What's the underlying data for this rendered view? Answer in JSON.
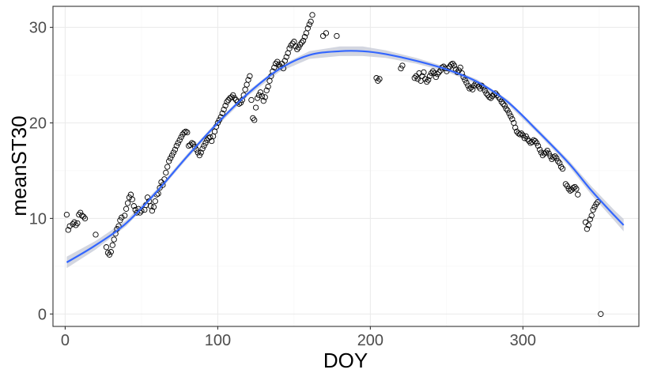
{
  "chart_data": {
    "type": "scatter",
    "title": "",
    "xlabel": "DOY",
    "ylabel": "meanST30",
    "xlim": [
      -8,
      376
    ],
    "ylim": [
      -1.3,
      32.2
    ],
    "xticks": [
      0,
      100,
      200,
      300
    ],
    "yticks": [
      0,
      10,
      20,
      30
    ],
    "x_tick_labels": [
      "0",
      "100",
      "200",
      "300"
    ],
    "y_tick_labels": [
      "0",
      "10",
      "20",
      "30"
    ],
    "grid": true,
    "colors": {
      "smooth": "#3366ff",
      "band": "#c4c8d6",
      "point": "#000000",
      "panel_border": "#333333"
    },
    "points": [
      [
        1,
        10.4
      ],
      [
        2,
        8.8
      ],
      [
        3,
        9.2
      ],
      [
        5,
        9.4
      ],
      [
        6,
        9.6
      ],
      [
        7,
        9.3
      ],
      [
        8,
        9.5
      ],
      [
        9,
        10.4
      ],
      [
        10,
        10.6
      ],
      [
        11,
        10.3
      ],
      [
        12,
        10.2
      ],
      [
        13,
        10.0
      ],
      [
        20,
        8.3
      ],
      [
        27,
        7.0
      ],
      [
        28,
        6.4
      ],
      [
        29,
        6.2
      ],
      [
        30,
        6.5
      ],
      [
        31,
        7.2
      ],
      [
        32,
        7.8
      ],
      [
        33,
        8.4
      ],
      [
        34,
        8.9
      ],
      [
        35,
        9.2
      ],
      [
        36,
        9.8
      ],
      [
        37,
        10.1
      ],
      [
        39,
        10.3
      ],
      [
        40,
        11.0
      ],
      [
        41,
        11.6
      ],
      [
        42,
        12.2
      ],
      [
        43,
        12.5
      ],
      [
        44,
        12.0
      ],
      [
        45,
        11.3
      ],
      [
        46,
        10.9
      ],
      [
        47,
        10.6
      ],
      [
        48,
        11.0
      ],
      [
        49,
        10.6
      ],
      [
        50,
        10.8
      ],
      [
        52,
        10.9
      ],
      [
        53,
        11.4
      ],
      [
        54,
        12.2
      ],
      [
        55,
        11.8
      ],
      [
        56,
        11.3
      ],
      [
        57,
        10.8
      ],
      [
        58,
        11.2
      ],
      [
        59,
        11.8
      ],
      [
        60,
        12.5
      ],
      [
        61,
        12.6
      ],
      [
        62,
        13.2
      ],
      [
        63,
        13.8
      ],
      [
        64,
        13.5
      ],
      [
        65,
        14.1
      ],
      [
        66,
        14.8
      ],
      [
        67,
        15.4
      ],
      [
        68,
        16.0
      ],
      [
        69,
        16.3
      ],
      [
        70,
        16.6
      ],
      [
        71,
        16.9
      ],
      [
        72,
        17.2
      ],
      [
        73,
        17.6
      ],
      [
        74,
        17.9
      ],
      [
        75,
        18.2
      ],
      [
        76,
        18.5
      ],
      [
        77,
        18.8
      ],
      [
        78,
        19.0
      ],
      [
        79,
        19.1
      ],
      [
        80,
        19.0
      ],
      [
        81,
        17.6
      ],
      [
        82,
        17.7
      ],
      [
        83,
        17.9
      ],
      [
        84,
        17.8
      ],
      [
        85,
        17.5
      ],
      [
        86,
        17.2
      ],
      [
        87,
        16.9
      ],
      [
        88,
        16.6
      ],
      [
        89,
        16.9
      ],
      [
        90,
        17.3
      ],
      [
        91,
        17.6
      ],
      [
        92,
        17.9
      ],
      [
        93,
        18.2
      ],
      [
        94,
        18.4
      ],
      [
        95,
        18.5
      ],
      [
        96,
        18.1
      ],
      [
        97,
        18.6
      ],
      [
        98,
        19.1
      ],
      [
        99,
        19.6
      ],
      [
        100,
        20.0
      ],
      [
        101,
        20.3
      ],
      [
        102,
        20.6
      ],
      [
        103,
        21.0
      ],
      [
        104,
        21.4
      ],
      [
        105,
        21.8
      ],
      [
        106,
        22.2
      ],
      [
        107,
        22.4
      ],
      [
        108,
        22.6
      ],
      [
        109,
        22.7
      ],
      [
        110,
        22.9
      ],
      [
        111,
        22.6
      ],
      [
        112,
        22.4
      ],
      [
        113,
        22.2
      ],
      [
        114,
        22.0
      ],
      [
        115,
        22.1
      ],
      [
        116,
        22.4
      ],
      [
        117,
        22.9
      ],
      [
        118,
        23.5
      ],
      [
        119,
        24.0
      ],
      [
        120,
        24.5
      ],
      [
        121,
        24.9
      ],
      [
        122,
        22.4
      ],
      [
        123,
        20.5
      ],
      [
        124,
        20.3
      ],
      [
        125,
        21.6
      ],
      [
        126,
        22.6
      ],
      [
        127,
        22.9
      ],
      [
        128,
        23.2
      ],
      [
        129,
        22.8
      ],
      [
        130,
        22.3
      ],
      [
        131,
        22.7
      ],
      [
        132,
        23.4
      ],
      [
        133,
        23.8
      ],
      [
        134,
        24.4
      ],
      [
        135,
        24.9
      ],
      [
        136,
        25.4
      ],
      [
        137,
        25.8
      ],
      [
        138,
        26.2
      ],
      [
        139,
        26.4
      ],
      [
        140,
        26.1
      ],
      [
        141,
        25.9
      ],
      [
        142,
        26.2
      ],
      [
        143,
        25.7
      ],
      [
        144,
        26.5
      ],
      [
        145,
        26.9
      ],
      [
        146,
        27.3
      ],
      [
        147,
        27.8
      ],
      [
        148,
        28.1
      ],
      [
        149,
        28.3
      ],
      [
        150,
        28.5
      ],
      [
        151,
        28.0
      ],
      [
        152,
        27.7
      ],
      [
        153,
        27.9
      ],
      [
        154,
        28.2
      ],
      [
        155,
        28.4
      ],
      [
        156,
        28.6
      ],
      [
        157,
        29.0
      ],
      [
        158,
        29.4
      ],
      [
        159,
        29.9
      ],
      [
        160,
        30.3
      ],
      [
        161,
        30.6
      ],
      [
        162,
        31.3
      ],
      [
        169,
        29.1
      ],
      [
        171,
        29.4
      ],
      [
        178,
        29.1
      ],
      [
        204,
        24.7
      ],
      [
        205,
        24.4
      ],
      [
        206,
        24.6
      ],
      [
        220,
        25.7
      ],
      [
        221,
        26.0
      ],
      [
        229,
        24.7
      ],
      [
        230,
        24.9
      ],
      [
        231,
        24.6
      ],
      [
        232,
        25.2
      ],
      [
        233,
        24.4
      ],
      [
        234,
        24.9
      ],
      [
        235,
        25.3
      ],
      [
        236,
        24.6
      ],
      [
        237,
        24.3
      ],
      [
        238,
        24.5
      ],
      [
        239,
        24.9
      ],
      [
        240,
        25.2
      ],
      [
        241,
        25.4
      ],
      [
        242,
        25.2
      ],
      [
        243,
        24.8
      ],
      [
        244,
        25.1
      ],
      [
        245,
        25.3
      ],
      [
        246,
        25.5
      ],
      [
        247,
        25.8
      ],
      [
        248,
        25.9
      ],
      [
        249,
        25.7
      ],
      [
        250,
        25.4
      ],
      [
        251,
        25.7
      ],
      [
        252,
        25.9
      ],
      [
        253,
        26.1
      ],
      [
        254,
        26.2
      ],
      [
        255,
        26.0
      ],
      [
        256,
        25.6
      ],
      [
        257,
        25.3
      ],
      [
        258,
        25.5
      ],
      [
        259,
        25.8
      ],
      [
        260,
        25.2
      ],
      [
        261,
        24.8
      ],
      [
        262,
        24.5
      ],
      [
        263,
        24.2
      ],
      [
        264,
        23.9
      ],
      [
        265,
        23.6
      ],
      [
        266,
        23.7
      ],
      [
        267,
        23.5
      ],
      [
        268,
        23.9
      ],
      [
        269,
        24.1
      ],
      [
        270,
        24.0
      ],
      [
        271,
        23.8
      ],
      [
        272,
        23.6
      ],
      [
        273,
        23.9
      ],
      [
        274,
        23.7
      ],
      [
        275,
        23.4
      ],
      [
        276,
        23.1
      ],
      [
        277,
        22.9
      ],
      [
        278,
        22.7
      ],
      [
        279,
        22.6
      ],
      [
        280,
        22.8
      ],
      [
        281,
        23.0
      ],
      [
        282,
        23.1
      ],
      [
        283,
        22.9
      ],
      [
        284,
        22.7
      ],
      [
        285,
        22.5
      ],
      [
        286,
        22.2
      ],
      [
        287,
        22.0
      ],
      [
        288,
        21.8
      ],
      [
        289,
        21.5
      ],
      [
        290,
        21.3
      ],
      [
        291,
        21.0
      ],
      [
        292,
        20.7
      ],
      [
        293,
        20.4
      ],
      [
        294,
        20.0
      ],
      [
        295,
        19.5
      ],
      [
        296,
        19.1
      ],
      [
        297,
        18.9
      ],
      [
        298,
        18.8
      ],
      [
        299,
        18.9
      ],
      [
        300,
        18.7
      ],
      [
        301,
        18.4
      ],
      [
        302,
        18.6
      ],
      [
        303,
        18.3
      ],
      [
        304,
        18.1
      ],
      [
        305,
        17.9
      ],
      [
        306,
        18.0
      ],
      [
        307,
        18.2
      ],
      [
        308,
        18.1
      ],
      [
        309,
        17.9
      ],
      [
        310,
        17.6
      ],
      [
        311,
        17.2
      ],
      [
        312,
        16.9
      ],
      [
        313,
        16.6
      ],
      [
        314,
        16.8
      ],
      [
        315,
        16.9
      ],
      [
        316,
        17.1
      ],
      [
        317,
        16.8
      ],
      [
        318,
        16.5
      ],
      [
        319,
        16.2
      ],
      [
        320,
        16.4
      ],
      [
        321,
        16.5
      ],
      [
        322,
        16.3
      ],
      [
        323,
        16.0
      ],
      [
        324,
        15.8
      ],
      [
        325,
        15.4
      ],
      [
        326,
        15.2
      ],
      [
        328,
        13.6
      ],
      [
        329,
        13.4
      ],
      [
        330,
        13.1
      ],
      [
        331,
        12.9
      ],
      [
        332,
        13.0
      ],
      [
        333,
        13.2
      ],
      [
        334,
        13.3
      ],
      [
        335,
        13.1
      ],
      [
        336,
        12.5
      ],
      [
        341,
        9.6
      ],
      [
        342,
        8.9
      ],
      [
        343,
        9.3
      ],
      [
        344,
        9.9
      ],
      [
        345,
        10.3
      ],
      [
        346,
        10.9
      ],
      [
        347,
        11.2
      ],
      [
        348,
        11.5
      ],
      [
        349,
        11.7
      ],
      [
        351,
        0.0
      ]
    ],
    "smooth": [
      [
        1,
        5.4
      ],
      [
        20,
        7.2
      ],
      [
        40,
        9.5
      ],
      [
        60,
        12.8
      ],
      [
        80,
        16.5
      ],
      [
        100,
        20.0
      ],
      [
        120,
        23.1
      ],
      [
        140,
        25.6
      ],
      [
        160,
        27.1
      ],
      [
        180,
        27.5
      ],
      [
        195,
        27.5
      ],
      [
        210,
        27.2
      ],
      [
        230,
        26.5
      ],
      [
        250,
        25.6
      ],
      [
        270,
        24.3
      ],
      [
        290,
        22.2
      ],
      [
        310,
        19.1
      ],
      [
        330,
        15.8
      ],
      [
        345,
        12.9
      ],
      [
        360,
        10.3
      ],
      [
        366,
        9.3
      ]
    ],
    "band_halfwidth": [
      [
        1,
        0.6
      ],
      [
        20,
        0.45
      ],
      [
        40,
        0.3
      ],
      [
        60,
        0.25
      ],
      [
        80,
        0.25
      ],
      [
        100,
        0.25
      ],
      [
        120,
        0.25
      ],
      [
        140,
        0.3
      ],
      [
        160,
        0.4
      ],
      [
        180,
        0.5
      ],
      [
        195,
        0.5
      ],
      [
        210,
        0.4
      ],
      [
        230,
        0.3
      ],
      [
        250,
        0.25
      ],
      [
        270,
        0.25
      ],
      [
        290,
        0.25
      ],
      [
        310,
        0.25
      ],
      [
        330,
        0.3
      ],
      [
        345,
        0.45
      ],
      [
        360,
        0.55
      ],
      [
        366,
        0.65
      ]
    ]
  }
}
